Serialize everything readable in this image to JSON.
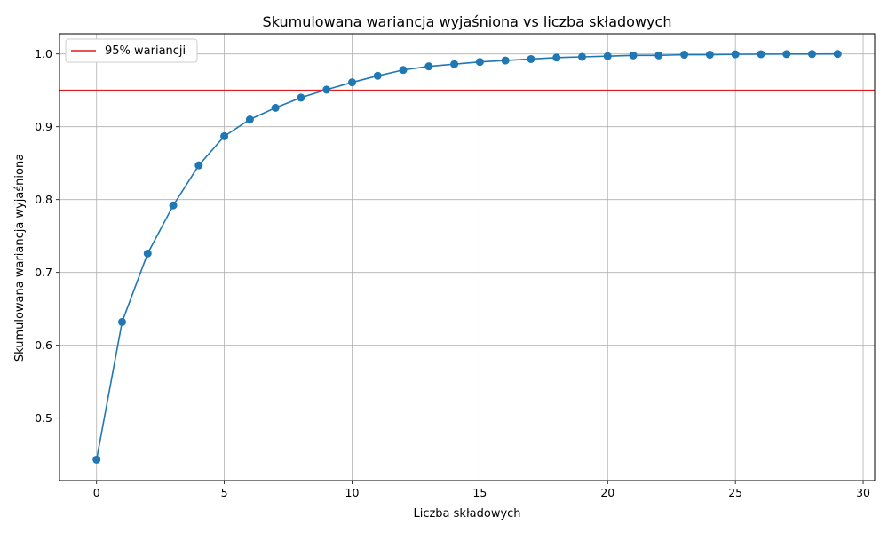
{
  "chart_data": {
    "type": "line",
    "title": "Skumulowana wariancja wyjaśniona vs liczba składowych",
    "xlabel": "Liczba składowych",
    "ylabel": "Skumulowana wariancja wyjaśniona",
    "xlim": [
      -1.45,
      30.45
    ],
    "ylim": [
      0.4142,
      1.0277
    ],
    "xticks": [
      0,
      5,
      10,
      15,
      20,
      25,
      30
    ],
    "yticks": [
      0.5,
      0.6,
      0.7,
      0.8,
      0.9,
      1.0
    ],
    "ytick_labels": [
      "0.5",
      "0.6",
      "0.7",
      "0.8",
      "0.9",
      "1.0"
    ],
    "grid": true,
    "legend_position": "upper-left",
    "series": [
      {
        "color": "#1f77b4",
        "marker": "circle",
        "x": [
          0,
          1,
          2,
          3,
          4,
          5,
          6,
          7,
          8,
          9,
          10,
          11,
          12,
          13,
          14,
          15,
          16,
          17,
          18,
          19,
          20,
          21,
          22,
          23,
          24,
          25,
          26,
          27,
          28,
          29
        ],
        "values": [
          0.443,
          0.632,
          0.726,
          0.792,
          0.847,
          0.887,
          0.91,
          0.926,
          0.94,
          0.951,
          0.961,
          0.97,
          0.978,
          0.983,
          0.986,
          0.989,
          0.991,
          0.993,
          0.995,
          0.996,
          0.997,
          0.998,
          0.998,
          0.999,
          0.999,
          0.9995,
          0.9997,
          0.9998,
          0.9999,
          1.0
        ]
      }
    ],
    "reference_line": {
      "name": "95% wariancji",
      "y": 0.95,
      "color": "#e31a1c"
    }
  }
}
